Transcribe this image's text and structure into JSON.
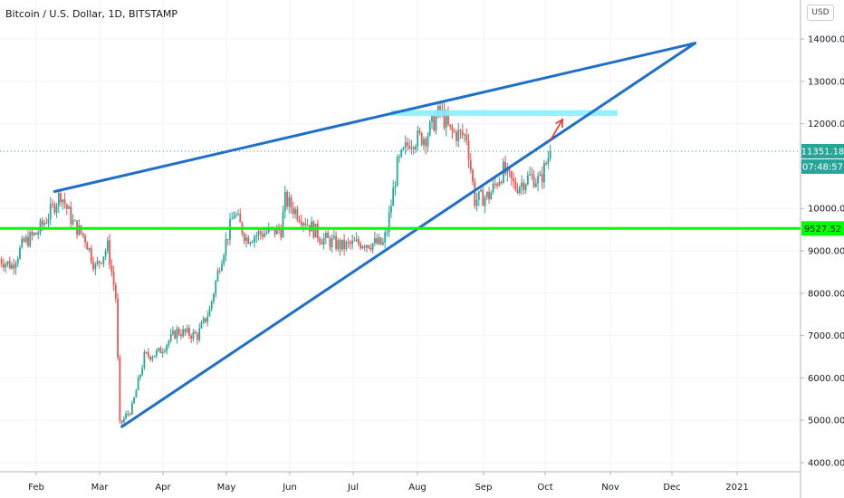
{
  "chart_title": "Bitcoin / U.S. Dollar, 1D, BITSTAMP",
  "currency_button": "USD",
  "chart_data": {
    "type": "candlestick",
    "title": "Bitcoin / U.S. Dollar, 1D, BITSTAMP",
    "y_axis": {
      "ticks": [
        "14000.00",
        "13000.00",
        "12000.00",
        "10000.00",
        "9000.00",
        "8000.00",
        "7000.00",
        "6000.00",
        "5000.00",
        "4000.00"
      ],
      "tick_values": [
        14000,
        13000,
        12000,
        10000,
        9000,
        8000,
        7000,
        6000,
        5000,
        4000
      ],
      "range": [
        3800,
        14700
      ]
    },
    "x_axis": {
      "ticks": [
        "Feb",
        "Mar",
        "Apr",
        "May",
        "Jun",
        "Jul",
        "Aug",
        "Sep",
        "Oct",
        "Nov",
        "Dec",
        "2021"
      ]
    },
    "price_labels": {
      "last_price": "11351.18",
      "countdown": "07:48:57",
      "horizontal_level": "9527.52"
    },
    "colors": {
      "up": "#26a69a",
      "down": "#ef5350",
      "trendline": "#1e6fcc",
      "support": "#00ff00",
      "resistance_zone": "#80f0ff",
      "arrow": "#e53935",
      "last_price_bg": "#26a69a"
    },
    "close_path_approx": [
      {
        "date": "Jan 14",
        "close": 8800
      },
      {
        "date": "Jan 20",
        "close": 8650
      },
      {
        "date": "Jan 26",
        "close": 9200
      },
      {
        "date": "Feb 1",
        "close": 9400
      },
      {
        "date": "Feb 6",
        "close": 9750
      },
      {
        "date": "Feb 13",
        "close": 10350
      },
      {
        "date": "Feb 19",
        "close": 9650
      },
      {
        "date": "Feb 25",
        "close": 9300
      },
      {
        "date": "Mar 1",
        "close": 8600
      },
      {
        "date": "Mar 7",
        "close": 9100
      },
      {
        "date": "Mar 11",
        "close": 7900
      },
      {
        "date": "Mar 13",
        "close": 4900
      },
      {
        "date": "Mar 19",
        "close": 5300
      },
      {
        "date": "Mar 25",
        "close": 6500
      },
      {
        "date": "Apr 1",
        "close": 6600
      },
      {
        "date": "Apr 10",
        "close": 7100
      },
      {
        "date": "Apr 20",
        "close": 7000
      },
      {
        "date": "Apr 26",
        "close": 7600
      },
      {
        "date": "May 1",
        "close": 8700
      },
      {
        "date": "May 8",
        "close": 9900
      },
      {
        "date": "May 14",
        "close": 9300
      },
      {
        "date": "May 20",
        "close": 9400
      },
      {
        "date": "May 31",
        "close": 9500
      },
      {
        "date": "Jun 2",
        "close": 10200
      },
      {
        "date": "Jun 10",
        "close": 9800
      },
      {
        "date": "Jun 20",
        "close": 9300
      },
      {
        "date": "Jun 30",
        "close": 9100
      },
      {
        "date": "Jul 10",
        "close": 9200
      },
      {
        "date": "Jul 20",
        "close": 9150
      },
      {
        "date": "Jul 22",
        "close": 9500
      },
      {
        "date": "Jul 27",
        "close": 11000
      },
      {
        "date": "Aug 2",
        "close": 11600
      },
      {
        "date": "Aug 10",
        "close": 11700
      },
      {
        "date": "Aug 17",
        "close": 12300
      },
      {
        "date": "Aug 22",
        "close": 11800
      },
      {
        "date": "Aug 30",
        "close": 11700
      },
      {
        "date": "Sep 3",
        "close": 10200
      },
      {
        "date": "Sep 10",
        "close": 10300
      },
      {
        "date": "Sep 17",
        "close": 10900
      },
      {
        "date": "Sep 23",
        "close": 10500
      },
      {
        "date": "Sep 30",
        "close": 10750
      },
      {
        "date": "Oct 5",
        "close": 10650
      },
      {
        "date": "Oct 10",
        "close": 11351
      }
    ],
    "annotations": [
      {
        "type": "trendline",
        "from": {
          "date": "Feb 10",
          "value": 10400
        },
        "to": {
          "date": "Dec 20",
          "value": 13900
        }
      },
      {
        "type": "trendline",
        "from": {
          "date": "Mar 14",
          "value": 4850
        },
        "to": {
          "date": "Dec 20",
          "value": 13900
        }
      },
      {
        "type": "horizontal_line",
        "value": 9527.52
      },
      {
        "type": "zone",
        "from_date": "Jul 24",
        "to_date": "Nov 12",
        "value_low": 12180,
        "value_high": 12320
      },
      {
        "type": "arrow",
        "direction": "up",
        "from": {
          "date": "Oct 10",
          "value": 11600
        },
        "to": {
          "date": "Oct 16",
          "value": 12100
        }
      }
    ]
  }
}
